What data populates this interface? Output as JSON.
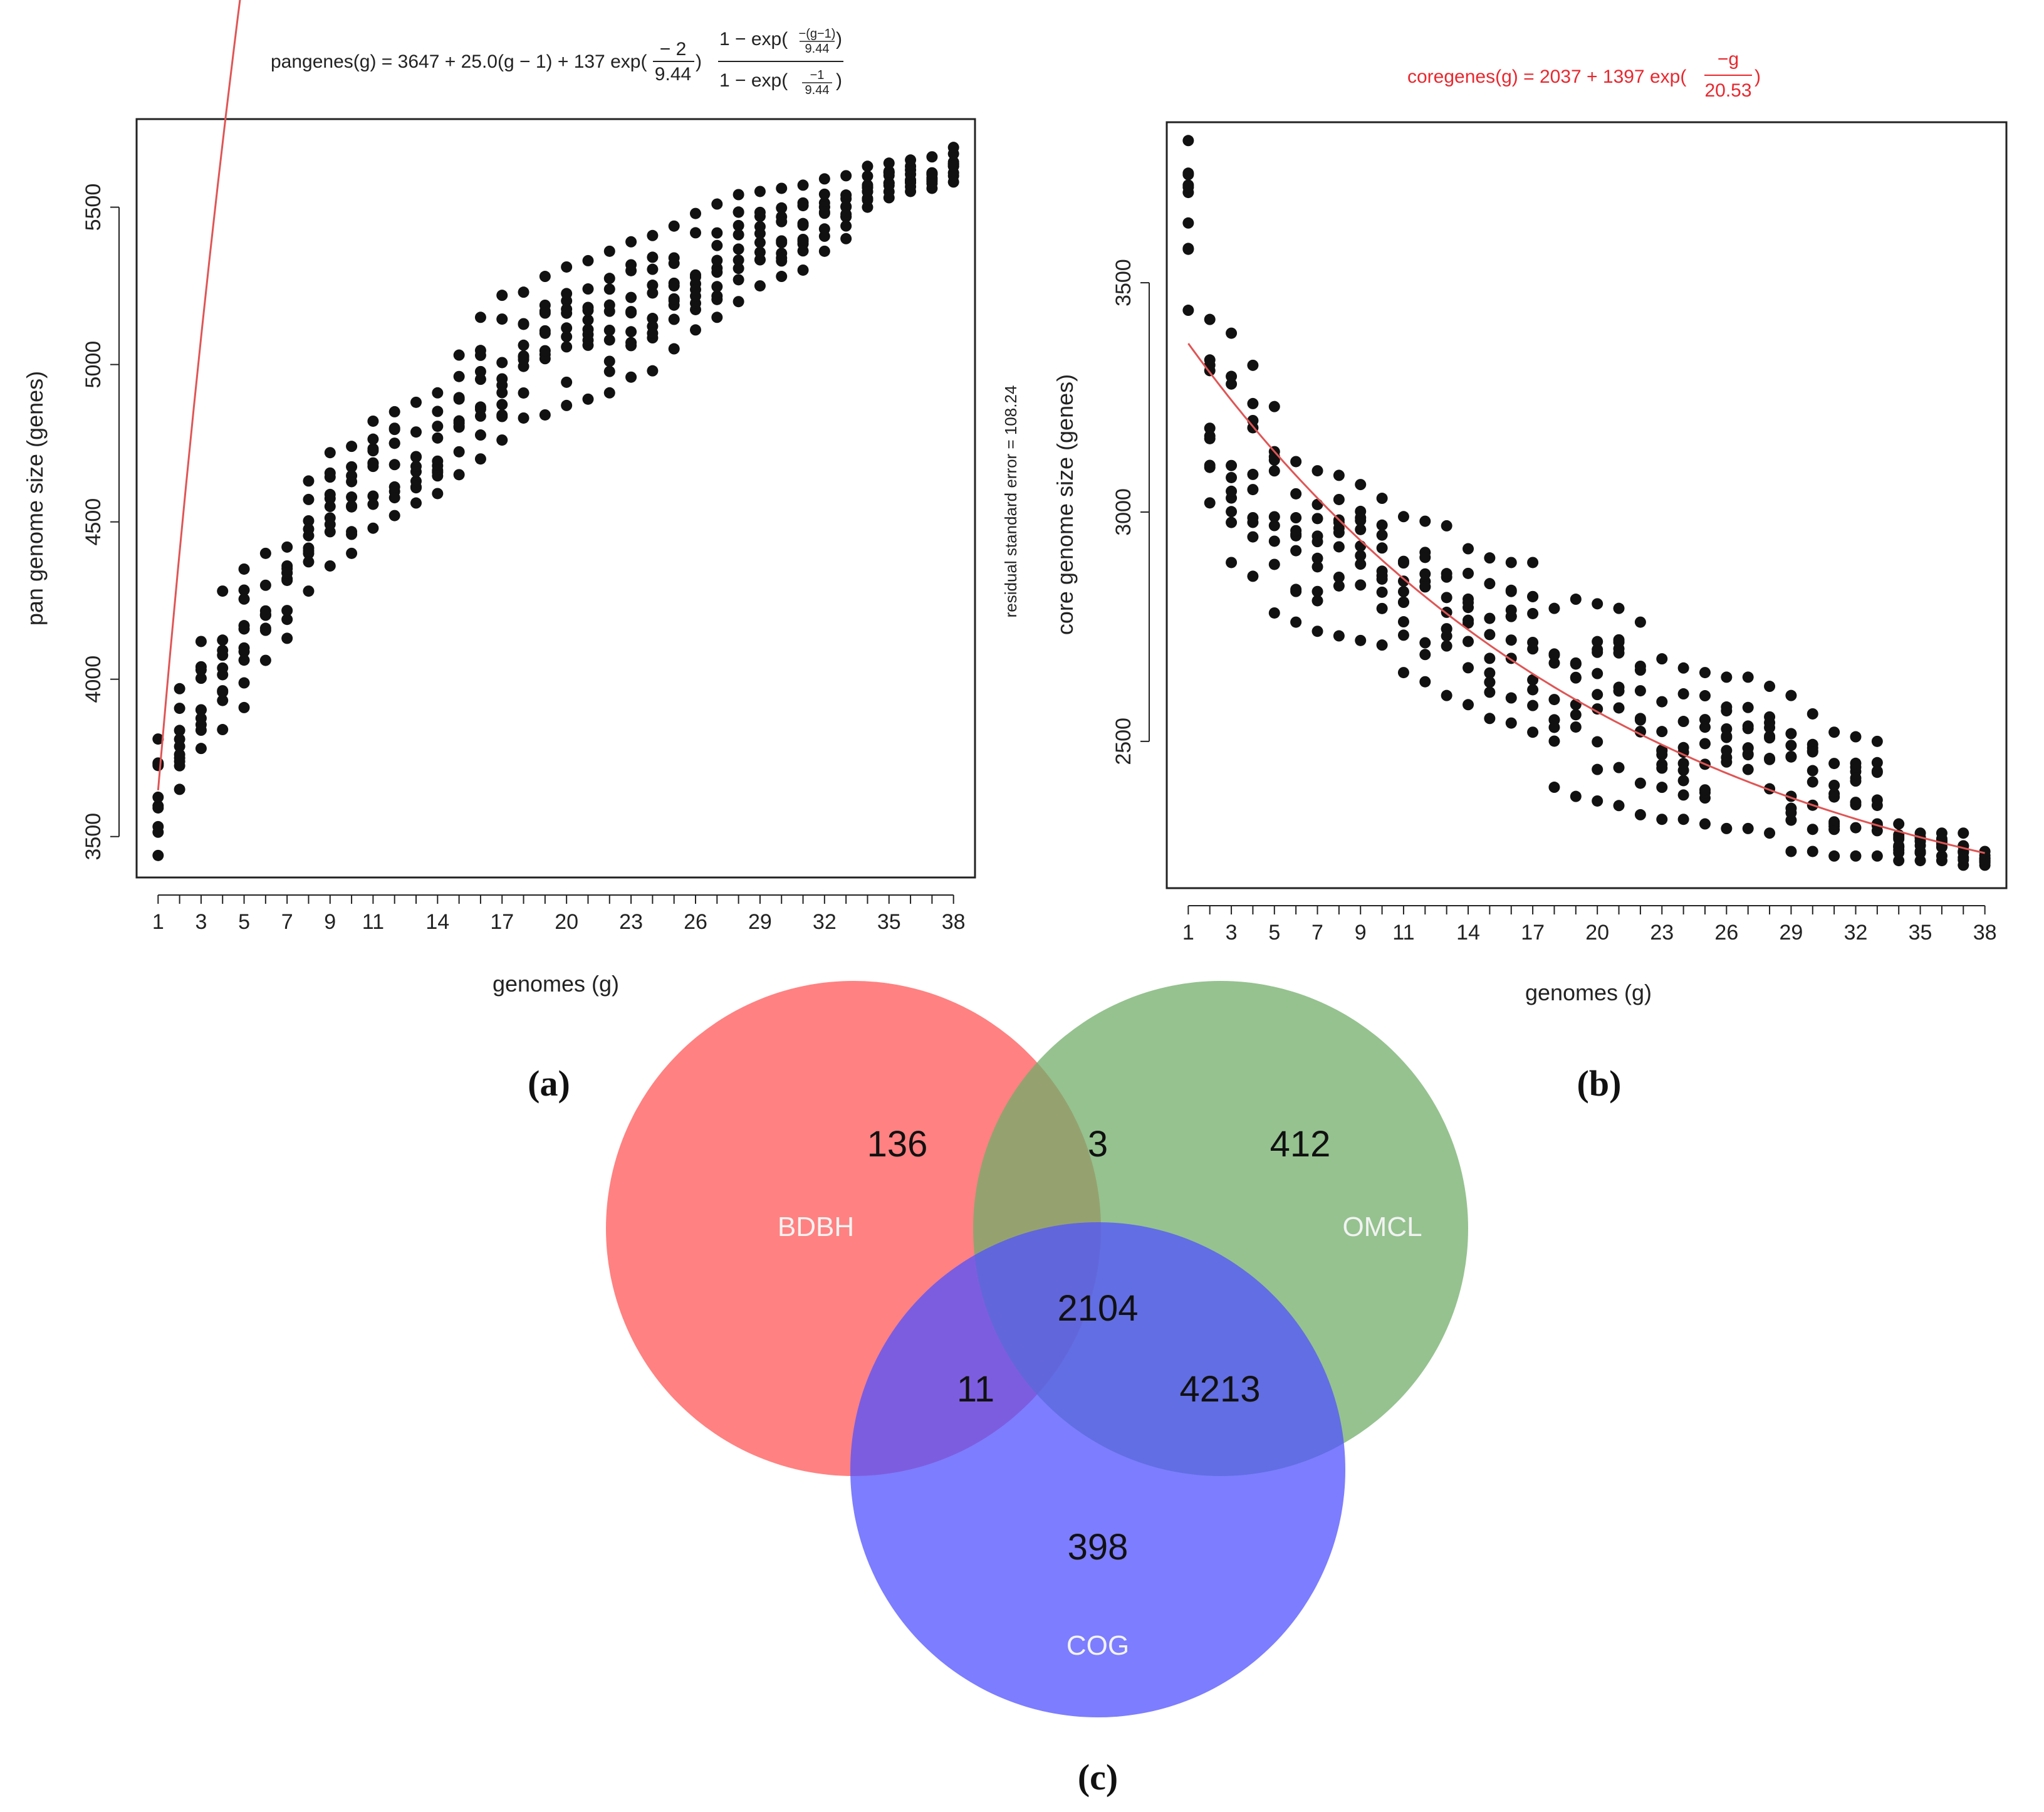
{
  "chart_data": [
    {
      "type": "scatter",
      "panel": "(a)",
      "title": "pangenes(g) = 3647 + 25.0(g − 1) + 137 exp(−2/9.44) · (1 − exp(−(g−1)/9.44)) / (1 − exp(−1/9.44))",
      "title_parts": {
        "lhs": "pangenes(g) = 3647 + 25.0(g − 1) + 137 exp(",
        "frac1_num": "− 2",
        "frac1_den": "9.44",
        "rparen": ")",
        "frac2_num_a": "1 − exp(",
        "frac2_num_inner_num": "−(g−1)",
        "frac2_num_inner_den": "9.44",
        "frac2_num_b": ")",
        "frac2_den_a": "1 − exp(",
        "frac2_den_inner_num": "−1",
        "frac2_den_inner_den": "9.44",
        "frac2_den_b": ")"
      },
      "xlabel": "genomes (g)",
      "ylabel": "pan genome size (genes)",
      "xlim": [
        0,
        39
      ],
      "ylim": [
        3370,
        5780
      ],
      "xticks": [
        1,
        3,
        5,
        7,
        9,
        11,
        14,
        17,
        20,
        23,
        26,
        29,
        32,
        35,
        38
      ],
      "yticks": [
        3500,
        4000,
        4500,
        5000,
        5500
      ],
      "fit": {
        "a": 3647,
        "b": 25.0,
        "c": 137,
        "tau": 9.44,
        "color": "#e05555"
      },
      "points_per_g": 10,
      "spread": [
        [
          1,
          3440,
          3810
        ],
        [
          2,
          3650,
          3970
        ],
        [
          3,
          3780,
          4120
        ],
        [
          4,
          3840,
          4280
        ],
        [
          5,
          3910,
          4350
        ],
        [
          6,
          4060,
          4400
        ],
        [
          7,
          4130,
          4420
        ],
        [
          8,
          4280,
          4630
        ],
        [
          9,
          4360,
          4720
        ],
        [
          10,
          4400,
          4740
        ],
        [
          11,
          4480,
          4820
        ],
        [
          12,
          4520,
          4850
        ],
        [
          13,
          4560,
          4880
        ],
        [
          14,
          4590,
          4910
        ],
        [
          15,
          4650,
          5030
        ],
        [
          16,
          4700,
          5150
        ],
        [
          17,
          4760,
          5220
        ],
        [
          18,
          4830,
          5230
        ],
        [
          19,
          4840,
          5280
        ],
        [
          20,
          4870,
          5310
        ],
        [
          21,
          4890,
          5330
        ],
        [
          22,
          4910,
          5360
        ],
        [
          23,
          4960,
          5390
        ],
        [
          24,
          4980,
          5410
        ],
        [
          25,
          5050,
          5440
        ],
        [
          26,
          5110,
          5480
        ],
        [
          27,
          5150,
          5510
        ],
        [
          28,
          5200,
          5540
        ],
        [
          29,
          5250,
          5550
        ],
        [
          30,
          5280,
          5560
        ],
        [
          31,
          5300,
          5570
        ],
        [
          32,
          5360,
          5590
        ],
        [
          33,
          5400,
          5600
        ],
        [
          34,
          5500,
          5630
        ],
        [
          35,
          5530,
          5640
        ],
        [
          36,
          5550,
          5650
        ],
        [
          37,
          5560,
          5660
        ],
        [
          38,
          5580,
          5690
        ]
      ]
    },
    {
      "type": "scatter",
      "panel": "(b)",
      "title": "coregenes(g) = 2037 + 1397 exp(−g/20.53)",
      "title_parts": {
        "lhs": "coregenes(g) = 2037 + 1397 exp(",
        "frac_num": "−g",
        "frac_den": "20.53",
        "rparen": ")"
      },
      "title_color": "#e8282f",
      "side_note": "residual standard error = 108.24",
      "xlabel": "genomes (g)",
      "ylabel": "core genome size (genes)",
      "xlim": [
        0,
        39
      ],
      "ylim": [
        2180,
        3850
      ],
      "xticks": [
        1,
        3,
        5,
        7,
        9,
        11,
        14,
        17,
        20,
        23,
        26,
        29,
        32,
        35,
        38
      ],
      "yticks": [
        2500,
        3000,
        3500
      ],
      "fit": {
        "a": 2037,
        "b": 1397,
        "tau": 20.53,
        "color": "#e05555"
      },
      "points_per_g": 10,
      "spread": [
        [
          1,
          3440,
          3810
        ],
        [
          2,
          3020,
          3420
        ],
        [
          3,
          2890,
          3390
        ],
        [
          4,
          2860,
          3320
        ],
        [
          5,
          2780,
          3230
        ],
        [
          6,
          2760,
          3110
        ],
        [
          7,
          2740,
          3090
        ],
        [
          8,
          2730,
          3080
        ],
        [
          9,
          2720,
          3060
        ],
        [
          10,
          2710,
          3030
        ],
        [
          11,
          2650,
          2990
        ],
        [
          12,
          2630,
          2980
        ],
        [
          13,
          2600,
          2970
        ],
        [
          14,
          2580,
          2920
        ],
        [
          15,
          2550,
          2900
        ],
        [
          16,
          2540,
          2890
        ],
        [
          17,
          2520,
          2890
        ],
        [
          18,
          2400,
          2790
        ],
        [
          19,
          2380,
          2810
        ],
        [
          20,
          2370,
          2800
        ],
        [
          21,
          2360,
          2790
        ],
        [
          22,
          2340,
          2760
        ],
        [
          23,
          2330,
          2680
        ],
        [
          24,
          2330,
          2660
        ],
        [
          25,
          2320,
          2650
        ],
        [
          26,
          2310,
          2640
        ],
        [
          27,
          2310,
          2640
        ],
        [
          28,
          2300,
          2620
        ],
        [
          29,
          2260,
          2600
        ],
        [
          30,
          2260,
          2560
        ],
        [
          31,
          2250,
          2520
        ],
        [
          32,
          2250,
          2510
        ],
        [
          33,
          2250,
          2500
        ],
        [
          34,
          2240,
          2320
        ],
        [
          35,
          2240,
          2300
        ],
        [
          36,
          2240,
          2300
        ],
        [
          37,
          2230,
          2300
        ],
        [
          38,
          2230,
          2260
        ]
      ]
    },
    {
      "type": "venn",
      "panel": "(c)",
      "sets": [
        {
          "name": "BDBH",
          "color": "#ff6b6b",
          "only": "136"
        },
        {
          "name": "OMCL",
          "color": "#80b87a",
          "only": "412"
        },
        {
          "name": "COG",
          "color": "#6161ff",
          "only": "398"
        }
      ],
      "intersections": {
        "BDBH_OMCL": "3",
        "BDBH_COG": "11",
        "OMCL_COG": "4213",
        "all": "2104"
      }
    }
  ]
}
